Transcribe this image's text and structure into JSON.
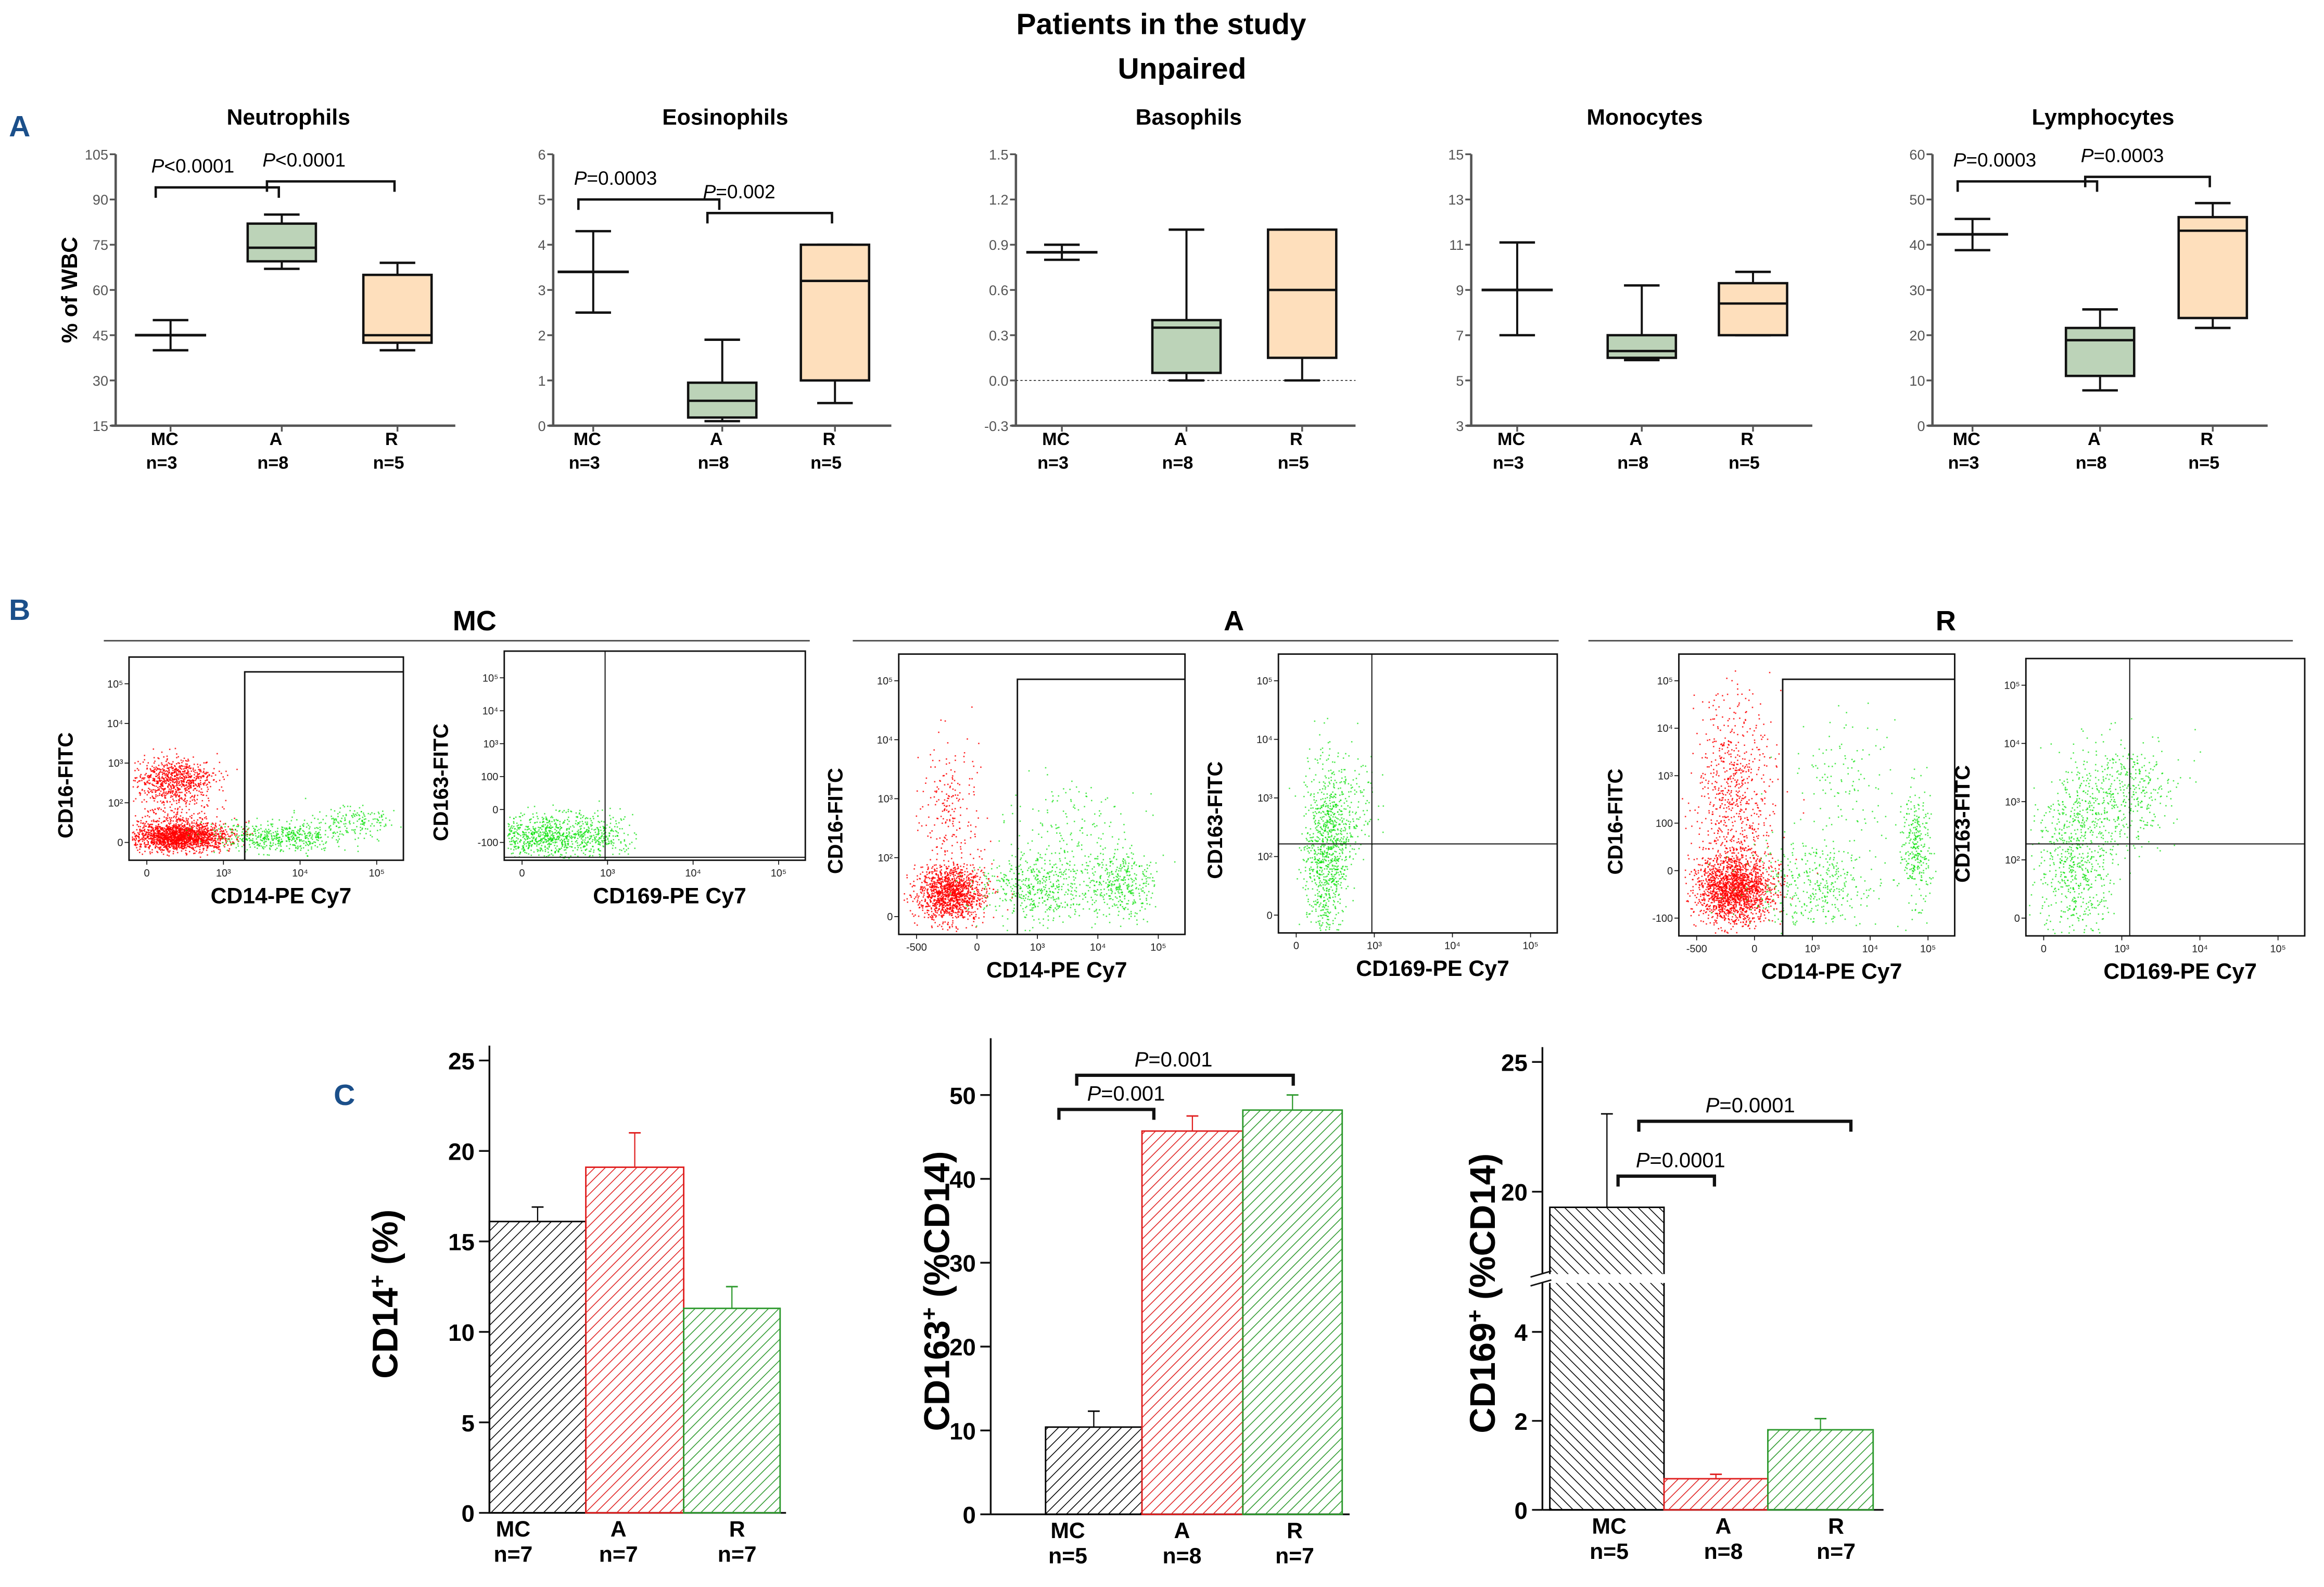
{
  "figure": {
    "title_line1": "Patients in the study",
    "title_line2": "Unpaired",
    "panel_letters": [
      "A",
      "B",
      "C"
    ],
    "colors": {
      "panel_letter": "#1b4f8a",
      "box_active": "#bcd3b8",
      "box_remission": "#fedfbc",
      "flow_red": "#ff0000",
      "flow_green": "#00e000",
      "bar_mc": "#000000",
      "bar_a": "#e02020",
      "bar_r": "#2e9a2e"
    }
  },
  "chart_data": [
    {
      "id": "neutrophils",
      "type": "box",
      "title": "Neutrophils",
      "ylabel": "% of WBC",
      "ylim": [
        15,
        105
      ],
      "yticks": [
        "15",
        "30",
        "45",
        "60",
        "75",
        "90",
        "105"
      ],
      "ytick_values": [
        15,
        30,
        45,
        60,
        75,
        90,
        105
      ],
      "categories": [
        "MC",
        "A",
        "R"
      ],
      "n_labels": [
        "n=3",
        "n=8",
        "n=5"
      ],
      "groups": [
        {
          "name": "MC",
          "style": "errorbar",
          "center": 45,
          "low": 40,
          "high": 50
        },
        {
          "name": "A",
          "style": "box",
          "min": 67,
          "q1": 69.5,
          "median": 74,
          "q3": 82,
          "max": 85
        },
        {
          "name": "R",
          "style": "box",
          "min": 40,
          "q1": 42.5,
          "median": 45,
          "q3": 65,
          "max": 69
        }
      ],
      "comparisons": [
        {
          "from": 0,
          "to": 1,
          "label_p": "P",
          "label_rest": "<0.0001",
          "y": 94
        },
        {
          "from": 1,
          "to": 2,
          "label_p": "P",
          "label_rest": "<0.0001",
          "y": 96
        }
      ],
      "zero_line": false
    },
    {
      "id": "eosinophils",
      "type": "box",
      "title": "Eosinophils",
      "ylabel": "",
      "ylim": [
        0,
        6
      ],
      "yticks": [
        "0",
        "1",
        "2",
        "3",
        "4",
        "5",
        "6"
      ],
      "ytick_values": [
        0,
        1,
        2,
        3,
        4,
        5,
        6
      ],
      "categories": [
        "MC",
        "A",
        "R"
      ],
      "n_labels": [
        "n=3",
        "n=8",
        "n=5"
      ],
      "groups": [
        {
          "name": "MC",
          "style": "errorbar",
          "center": 3.4,
          "low": 2.5,
          "high": 4.3
        },
        {
          "name": "A",
          "style": "box",
          "min": 0.1,
          "q1": 0.18,
          "median": 0.55,
          "q3": 0.95,
          "max": 1.9
        },
        {
          "name": "R",
          "style": "box",
          "min": 0.5,
          "q1": 1.0,
          "median": 3.2,
          "q3": 4.0,
          "max": 4.0
        }
      ],
      "comparisons": [
        {
          "from": 0,
          "to": 1,
          "label_p": "P",
          "label_rest": "=0.0003",
          "y": 5.0
        },
        {
          "from": 1,
          "to": 2,
          "label_p": "P",
          "label_rest": "=0.002",
          "y": 4.7
        }
      ],
      "zero_line": false
    },
    {
      "id": "basophils",
      "type": "box",
      "title": "Basophils",
      "ylabel": "",
      "ylim": [
        -0.3,
        1.5
      ],
      "yticks": [
        "-0.3",
        "0.0",
        "0.3",
        "0.6",
        "0.9",
        "1.2",
        "1.5"
      ],
      "ytick_values": [
        -0.3,
        0,
        0.3,
        0.6,
        0.9,
        1.2,
        1.5
      ],
      "categories": [
        "MC",
        "A",
        "R"
      ],
      "n_labels": [
        "n=3",
        "n=8",
        "n=5"
      ],
      "groups": [
        {
          "name": "MC",
          "style": "errorbar",
          "center": 0.85,
          "low": 0.8,
          "high": 0.9
        },
        {
          "name": "A",
          "style": "box",
          "min": 0.0,
          "q1": 0.05,
          "median": 0.35,
          "q3": 0.4,
          "max": 1.0
        },
        {
          "name": "R",
          "style": "box",
          "min": 0.0,
          "q1": 0.15,
          "median": 0.6,
          "q3": 1.0,
          "max": 1.0
        }
      ],
      "comparisons": [],
      "zero_line": true
    },
    {
      "id": "monocytes",
      "type": "box",
      "title": "Monocytes",
      "ylabel": "",
      "ylim": [
        3,
        15
      ],
      "yticks": [
        "3",
        "5",
        "7",
        "9",
        "11",
        "13",
        "15"
      ],
      "ytick_values": [
        3,
        5,
        7,
        9,
        11,
        13,
        15
      ],
      "categories": [
        "MC",
        "A",
        "R"
      ],
      "n_labels": [
        "n=3",
        "n=8",
        "n=5"
      ],
      "groups": [
        {
          "name": "MC",
          "style": "errorbar",
          "center": 9.0,
          "low": 7.0,
          "high": 11.1
        },
        {
          "name": "A",
          "style": "box",
          "min": 5.9,
          "q1": 6.0,
          "median": 6.3,
          "q3": 7.0,
          "max": 9.2
        },
        {
          "name": "R",
          "style": "box",
          "min": 7.0,
          "q1": 7.0,
          "median": 8.4,
          "q3": 9.3,
          "max": 9.8
        }
      ],
      "comparisons": [],
      "zero_line": false
    },
    {
      "id": "lymphocytes",
      "type": "box",
      "title": "Lymphocytes",
      "ylabel": "",
      "ylim": [
        0,
        60
      ],
      "yticks": [
        "0",
        "10",
        "20",
        "30",
        "40",
        "50",
        "60"
      ],
      "ytick_values": [
        0,
        10,
        20,
        30,
        40,
        50,
        60
      ],
      "categories": [
        "MC",
        "A",
        "R"
      ],
      "n_labels": [
        "n=3",
        "n=8",
        "n=5"
      ],
      "groups": [
        {
          "name": "MC",
          "style": "errorbar",
          "center": 42.3,
          "low": 38.8,
          "high": 45.7
        },
        {
          "name": "A",
          "style": "box",
          "min": 7.8,
          "q1": 11.0,
          "median": 18.9,
          "q3": 21.6,
          "max": 25.7
        },
        {
          "name": "R",
          "style": "box",
          "min": 21.6,
          "q1": 23.8,
          "median": 43.1,
          "q3": 46.1,
          "max": 49.2
        }
      ],
      "comparisons": [
        {
          "from": 0,
          "to": 1,
          "label_p": "P",
          "label_rest": "=0.0003",
          "y": 54
        },
        {
          "from": 1,
          "to": 2,
          "label_p": "P",
          "label_rest": "=0.0003",
          "y": 55
        }
      ],
      "zero_line": false
    },
    {
      "id": "flow-cytometry",
      "type": "scatter",
      "groups": [
        {
          "name": "MC",
          "plots": [
            {
              "ylabel": "CD16-FITC",
              "xlabel": "CD14-PE Cy7",
              "yticks": [
                "0",
                "10²",
                "10³",
                "10⁴",
                "10⁵"
              ],
              "xticks": [
                "0",
                "10³",
                "10⁴",
                "10⁵"
              ],
              "gate": "rectangle",
              "populations": "red CD14-negative cluster near 0 with CD16+ subset near 10²·⁵; green CD14+ events spreading to 10⁵"
            },
            {
              "ylabel": "CD163-FITC",
              "xlabel": "CD169-PE Cy7",
              "yticks": [
                "-100",
                "0",
                "100",
                "10³",
                "10⁴",
                "10⁵"
              ],
              "xticks": [
                "0",
                "10³",
                "10⁴",
                "10⁵"
              ],
              "gate": "quadrant",
              "populations": "green cluster in lower-left quadrant"
            }
          ]
        },
        {
          "name": "A",
          "plots": [
            {
              "ylabel": "CD16-FITC",
              "xlabel": "CD14-PE Cy7",
              "yticks": [
                "0",
                "10²",
                "10³",
                "10⁴",
                "10⁵"
              ],
              "xticks": [
                "-500",
                "0",
                "10³",
                "10⁴",
                "10⁵"
              ],
              "gate": "rectangle",
              "populations": "red cluster near 0; green CD14+ events with high cluster near 10⁴·⁵"
            },
            {
              "ylabel": "CD163-FITC",
              "xlabel": "CD169-PE Cy7",
              "yticks": [
                "0",
                "10²",
                "10³",
                "10⁴",
                "10⁵"
              ],
              "xticks": [
                "0",
                "10³",
                "10⁴",
                "10⁵"
              ],
              "gate": "quadrant",
              "populations": "green events spread vertically across the CD163 threshold, left quadrants"
            }
          ]
        },
        {
          "name": "R",
          "plots": [
            {
              "ylabel": "CD16-FITC",
              "xlabel": "CD14-PE Cy7",
              "yticks": [
                "-100",
                "0",
                "100",
                "10³",
                "10⁴",
                "10⁵"
              ],
              "xticks": [
                "-500",
                "0",
                "10³",
                "10⁴",
                "10⁵"
              ],
              "gate": "rectangle",
              "populations": "red cluster spreading up to 10⁴; green CD14+ with CD16+ cluster near 10⁵"
            },
            {
              "ylabel": "CD163-FITC",
              "xlabel": "CD169-PE Cy7",
              "yticks": [
                "0",
                "10²",
                "10³",
                "10⁴",
                "10⁵"
              ],
              "xticks": [
                "0",
                "10³",
                "10⁴",
                "10⁵"
              ],
              "gate": "quadrant",
              "populations": "green events spread across quadrants, upper-right cluster near 10³"
            }
          ]
        }
      ]
    },
    {
      "id": "cd14",
      "type": "bar",
      "ylabel_main": "CD14",
      "ylabel_sup": "+",
      "ylabel_rest": " (%)",
      "ylim": [
        0,
        25
      ],
      "yticks": [
        "0",
        "5",
        "10",
        "15",
        "20",
        "25"
      ],
      "ytick_values": [
        0,
        5,
        10,
        15,
        20,
        25
      ],
      "categories": [
        "MC",
        "A",
        "R"
      ],
      "n_labels": [
        "n=7",
        "n=7",
        "n=7"
      ],
      "values": [
        16.1,
        19.1,
        11.3
      ],
      "error_high": [
        16.9,
        21.0,
        12.5
      ],
      "comparisons": []
    },
    {
      "id": "cd163",
      "type": "bar",
      "ylabel_main": "CD163",
      "ylabel_sup": "+",
      "ylabel_rest": " (%CD14)",
      "ylim": [
        0,
        55
      ],
      "yticks": [
        "0",
        "10",
        "20",
        "30",
        "40",
        "50"
      ],
      "ytick_values": [
        0,
        10,
        20,
        30,
        40,
        50
      ],
      "categories": [
        "MC",
        "A",
        "R"
      ],
      "n_labels": [
        "n=5",
        "n=8",
        "n=7"
      ],
      "values": [
        10.4,
        45.7,
        48.2
      ],
      "error_high": [
        12.3,
        47.5,
        50.0
      ],
      "comparisons": [
        {
          "from": 0,
          "to": 1,
          "label_p": "P",
          "label_rest": "=0.001",
          "level": 1
        },
        {
          "from": 0,
          "to": 2,
          "label_p": "P",
          "label_rest": "=0.001",
          "level": 2
        }
      ]
    },
    {
      "id": "cd169",
      "type": "bar",
      "ylabel_main": "CD169",
      "ylabel_sup": "+",
      "ylabel_rest": " (%CD14)",
      "ylim": [
        0,
        25
      ],
      "axis_break": [
        5,
        17
      ],
      "yticks": [
        "0",
        "2",
        "4",
        "20",
        "25"
      ],
      "ytick_values": [
        0,
        2,
        4,
        20,
        25
      ],
      "categories": [
        "MC",
        "A",
        "R"
      ],
      "n_labels": [
        "n=5",
        "n=8",
        "n=7"
      ],
      "values": [
        19.4,
        0.7,
        1.8
      ],
      "error_high": [
        23.0,
        0.8,
        2.05
      ],
      "comparisons": [
        {
          "from": 0,
          "to": 1,
          "label_p": "P",
          "label_rest": "=0.0001",
          "level": 1
        },
        {
          "from": 0,
          "to": 2,
          "label_p": "P",
          "label_rest": "=0.0001",
          "level": 2
        }
      ]
    }
  ]
}
